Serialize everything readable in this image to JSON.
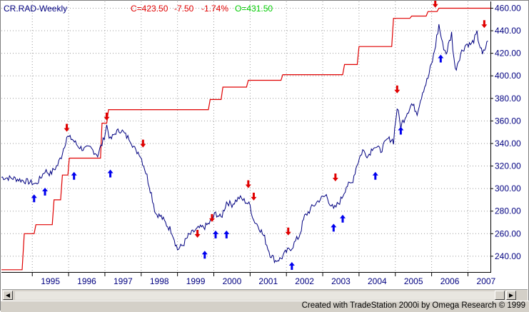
{
  "header": {
    "symbol": "CR.RAD-Weekly",
    "close_label": "C=423.50",
    "change": "-7.50",
    "change_pct": "-1.74%",
    "open_label": "O=431.50"
  },
  "footer": {
    "credit": "Created with TradeStation 2000i by Omega Research © 1999"
  },
  "colors": {
    "price": "#000080",
    "stop_line": "#e00000",
    "sell_arrow": "#e00000",
    "buy_arrow": "#0000ee",
    "title": "#000080",
    "quote": "#e00000",
    "open": "#00cc00",
    "axis_text": "#000080"
  },
  "chart_data": {
    "type": "line",
    "x_tick_labels": [
      "1995",
      "1996",
      "1997",
      "1998",
      "1999",
      "2000",
      "2001",
      "2002",
      "2003",
      "2004",
      "2005",
      "2006",
      "2007"
    ],
    "y_tick_labels": [
      "460.00",
      "440.00",
      "420.00",
      "400.00",
      "380.00",
      "360.00",
      "340.00",
      "320.00",
      "300.00",
      "280.00",
      "260.00",
      "240.00"
    ],
    "ylim": [
      226,
      466
    ],
    "xlim": [
      1994.15,
      2007.62
    ],
    "grid": true,
    "series": [
      {
        "name": "",
        "style": "weekly price",
        "x": [
          1994.15,
          1994.5,
          1994.9,
          1995.1,
          1995.2,
          1995.35,
          1995.5,
          1995.7,
          1995.8,
          1995.95,
          1996.1,
          1996.25,
          1996.4,
          1996.6,
          1996.8,
          1996.95,
          1997.05,
          1997.15,
          1997.3,
          1997.45,
          1997.6,
          1997.7,
          1997.85,
          1997.95,
          1998.1,
          1998.25,
          1998.4,
          1998.55,
          1998.7,
          1998.85,
          1999.0,
          1999.15,
          1999.3,
          1999.45,
          1999.6,
          1999.75,
          1999.9,
          2000.05,
          2000.2,
          2000.35,
          2000.5,
          2000.7,
          2000.9,
          2001.0,
          2001.1,
          2001.25,
          2001.4,
          2001.55,
          2001.7,
          2001.85,
          2002.0,
          2002.15,
          2002.35,
          2002.5,
          2002.7,
          2002.9,
          2003.1,
          2003.3,
          2003.5,
          2003.65,
          2003.8,
          2003.95,
          2004.1,
          2004.25,
          2004.4,
          2004.6,
          2004.8,
          2004.95,
          2005.05,
          2005.15,
          2005.3,
          2005.45,
          2005.6,
          2005.75,
          2005.9,
          2006.05,
          2006.2,
          2006.3,
          2006.4,
          2006.55,
          2006.65,
          2006.8,
          2006.95,
          2007.1,
          2007.25,
          2007.4,
          2007.55
        ],
        "y": [
          310,
          309,
          306,
          304,
          308,
          316,
          313,
          321,
          329,
          346,
          344,
          338,
          335,
          336,
          330,
          342,
          356,
          343,
          350,
          352,
          346,
          344,
          333,
          332,
          318,
          300,
          278,
          275,
          268,
          262,
          246,
          250,
          258,
          262,
          265,
          266,
          270,
          278,
          274,
          288,
          286,
          292,
          288,
          285,
          272,
          266,
          256,
          242,
          236,
          238,
          244,
          248,
          258,
          275,
          283,
          290,
          294,
          281,
          290,
          302,
          305,
          322,
          334,
          329,
          338,
          334,
          344,
          343,
          372,
          355,
          366,
          375,
          368,
          386,
          398,
          417,
          445,
          428,
          420,
          437,
          405,
          420,
          428,
          428,
          437,
          418,
          431
        ]
      },
      {
        "name": "",
        "style": "stop step line",
        "x": [
          1994.15,
          1994.72,
          1994.78,
          1995.05,
          1995.1,
          1995.55,
          1995.6,
          1995.78,
          1995.83,
          1995.98,
          1996.02,
          1996.88,
          1996.92,
          1997.05,
          1997.1,
          1999.85,
          1999.9,
          2000.2,
          2000.25,
          2000.9,
          2000.95,
          2001.85,
          2001.9,
          2003.55,
          2003.6,
          2003.95,
          2004.0,
          2004.9,
          2004.95,
          2005.4,
          2005.45,
          2005.85,
          2005.9,
          2006.15,
          2006.2,
          2007.62
        ],
        "y": [
          228,
          228,
          260,
          260,
          268,
          268,
          290,
          290,
          312,
          312,
          327,
          327,
          358,
          358,
          370,
          370,
          379,
          379,
          390,
          390,
          396,
          396,
          401,
          401,
          410,
          410,
          426,
          426,
          451,
          451,
          453,
          453,
          457,
          457,
          460,
          460
        ]
      }
    ],
    "sell_signals": [
      [
        1995.95,
        346
      ],
      [
        1997.05,
        356
      ],
      [
        1998.05,
        332
      ],
      [
        1999.55,
        252
      ],
      [
        1999.95,
        266
      ],
      [
        2000.95,
        296
      ],
      [
        2001.1,
        285
      ],
      [
        2002.05,
        254
      ],
      [
        2003.35,
        302
      ],
      [
        2005.05,
        380
      ],
      [
        2006.1,
        456
      ],
      [
        2007.45,
        438
      ]
    ],
    "buy_signals": [
      [
        1995.05,
        298
      ],
      [
        1995.35,
        304
      ],
      [
        1996.15,
        318
      ],
      [
        1997.15,
        320
      ],
      [
        1999.75,
        248
      ],
      [
        2000.05,
        266
      ],
      [
        2000.35,
        266
      ],
      [
        2002.15,
        238
      ],
      [
        2003.3,
        272
      ],
      [
        2003.55,
        280
      ],
      [
        2004.45,
        318
      ],
      [
        2005.15,
        358
      ],
      [
        2006.25,
        422
      ]
    ]
  }
}
